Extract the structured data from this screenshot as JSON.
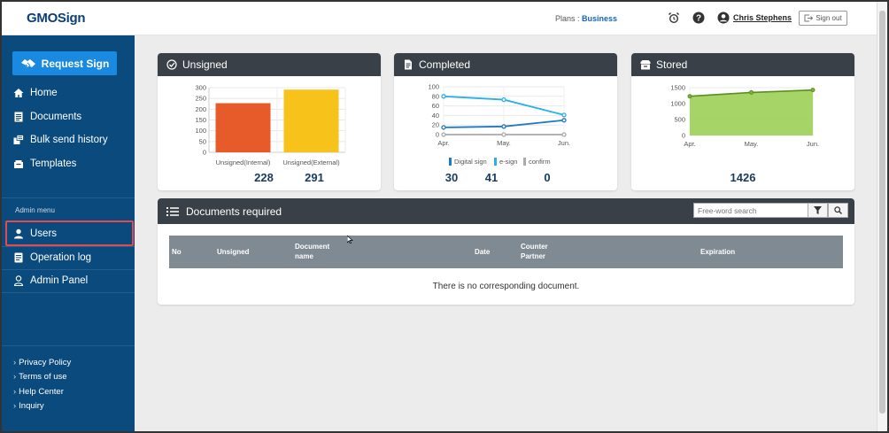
{
  "header": {
    "logo": "GMOSign",
    "plan_label": "Plans : ",
    "plan_value": "Business",
    "user_name": "Chris Stephens",
    "signout_label": "Sign out",
    "icons": [
      "alarm-clock-icon",
      "help-icon",
      "user-icon",
      "sign-out-icon"
    ]
  },
  "sidebar": {
    "request_sign": "Request Sign",
    "items": [
      {
        "label": "Home",
        "icon": "home-icon"
      },
      {
        "label": "Documents",
        "icon": "documents-icon"
      },
      {
        "label": "Bulk send history",
        "icon": "bulk-send-icon"
      },
      {
        "label": "Templates",
        "icon": "templates-icon"
      }
    ],
    "admin_label": "Admin menu",
    "admin_items": [
      {
        "label": "Users",
        "icon": "user-icon"
      },
      {
        "label": "Operation log",
        "icon": "log-icon"
      },
      {
        "label": "Admin Panel",
        "icon": "admin-icon"
      }
    ],
    "footer_links": [
      "Privacy Policy",
      "Terms of use",
      "Help Center",
      "Inquiry"
    ]
  },
  "cards": {
    "unsigned": {
      "title": "Unsigned",
      "internal_count": "228",
      "external_count": "291"
    },
    "completed": {
      "title": "Completed",
      "legend": [
        "Digital sign",
        "e-sign",
        "confirm"
      ],
      "counts": [
        "30",
        "41",
        "0"
      ]
    },
    "stored": {
      "title": "Stored",
      "count": "1426"
    }
  },
  "documents": {
    "title": "Documents required",
    "search_placeholder": "Free-word search",
    "columns": {
      "no": "No",
      "unsigned": "Unsigned",
      "doc_name_1": "Document",
      "doc_name_2": "name",
      "date": "Date",
      "counter_1": "Counter",
      "counter_2": "Partner",
      "expiration": "Expiration"
    },
    "empty_message": "There is no corresponding document."
  },
  "colors": {
    "sidebar_bg": "#0a4a7d",
    "accent": "#1a8ae0",
    "internal_bar": "#e75b2a",
    "external_bar": "#f7c21a",
    "digital_sign": "#1e7ac4",
    "e_sign": "#2ab0e8",
    "confirm": "#aaaaaa",
    "stored_area": "#9ccf55"
  },
  "chart_data": [
    {
      "type": "bar",
      "categories": [
        "Unsigned(Internal)",
        "Unsigned(External)"
      ],
      "values": [
        228,
        291
      ],
      "ylim": [
        0,
        300
      ],
      "yticks": [
        0,
        50,
        100,
        150,
        200,
        250,
        300
      ],
      "grid": true
    },
    {
      "type": "line",
      "x": [
        "Apr.",
        "May.",
        "Jun."
      ],
      "series": [
        {
          "name": "Digital sign",
          "values": [
            15,
            17,
            30
          ]
        },
        {
          "name": "e-sign",
          "values": [
            80,
            73,
            41
          ]
        },
        {
          "name": "confirm",
          "values": [
            0,
            0,
            0
          ]
        }
      ],
      "ylim": [
        0,
        100
      ],
      "yticks": [
        0,
        20,
        40,
        60,
        80,
        100
      ],
      "legend": "bottom",
      "grid": true
    },
    {
      "type": "area",
      "x": [
        "Apr.",
        "May.",
        "Jun."
      ],
      "series": [
        {
          "values": [
            1230,
            1350,
            1426
          ]
        }
      ],
      "ylim": [
        0,
        1500
      ],
      "yticks": [
        0,
        500,
        1000,
        1500
      ],
      "grid": true
    }
  ]
}
